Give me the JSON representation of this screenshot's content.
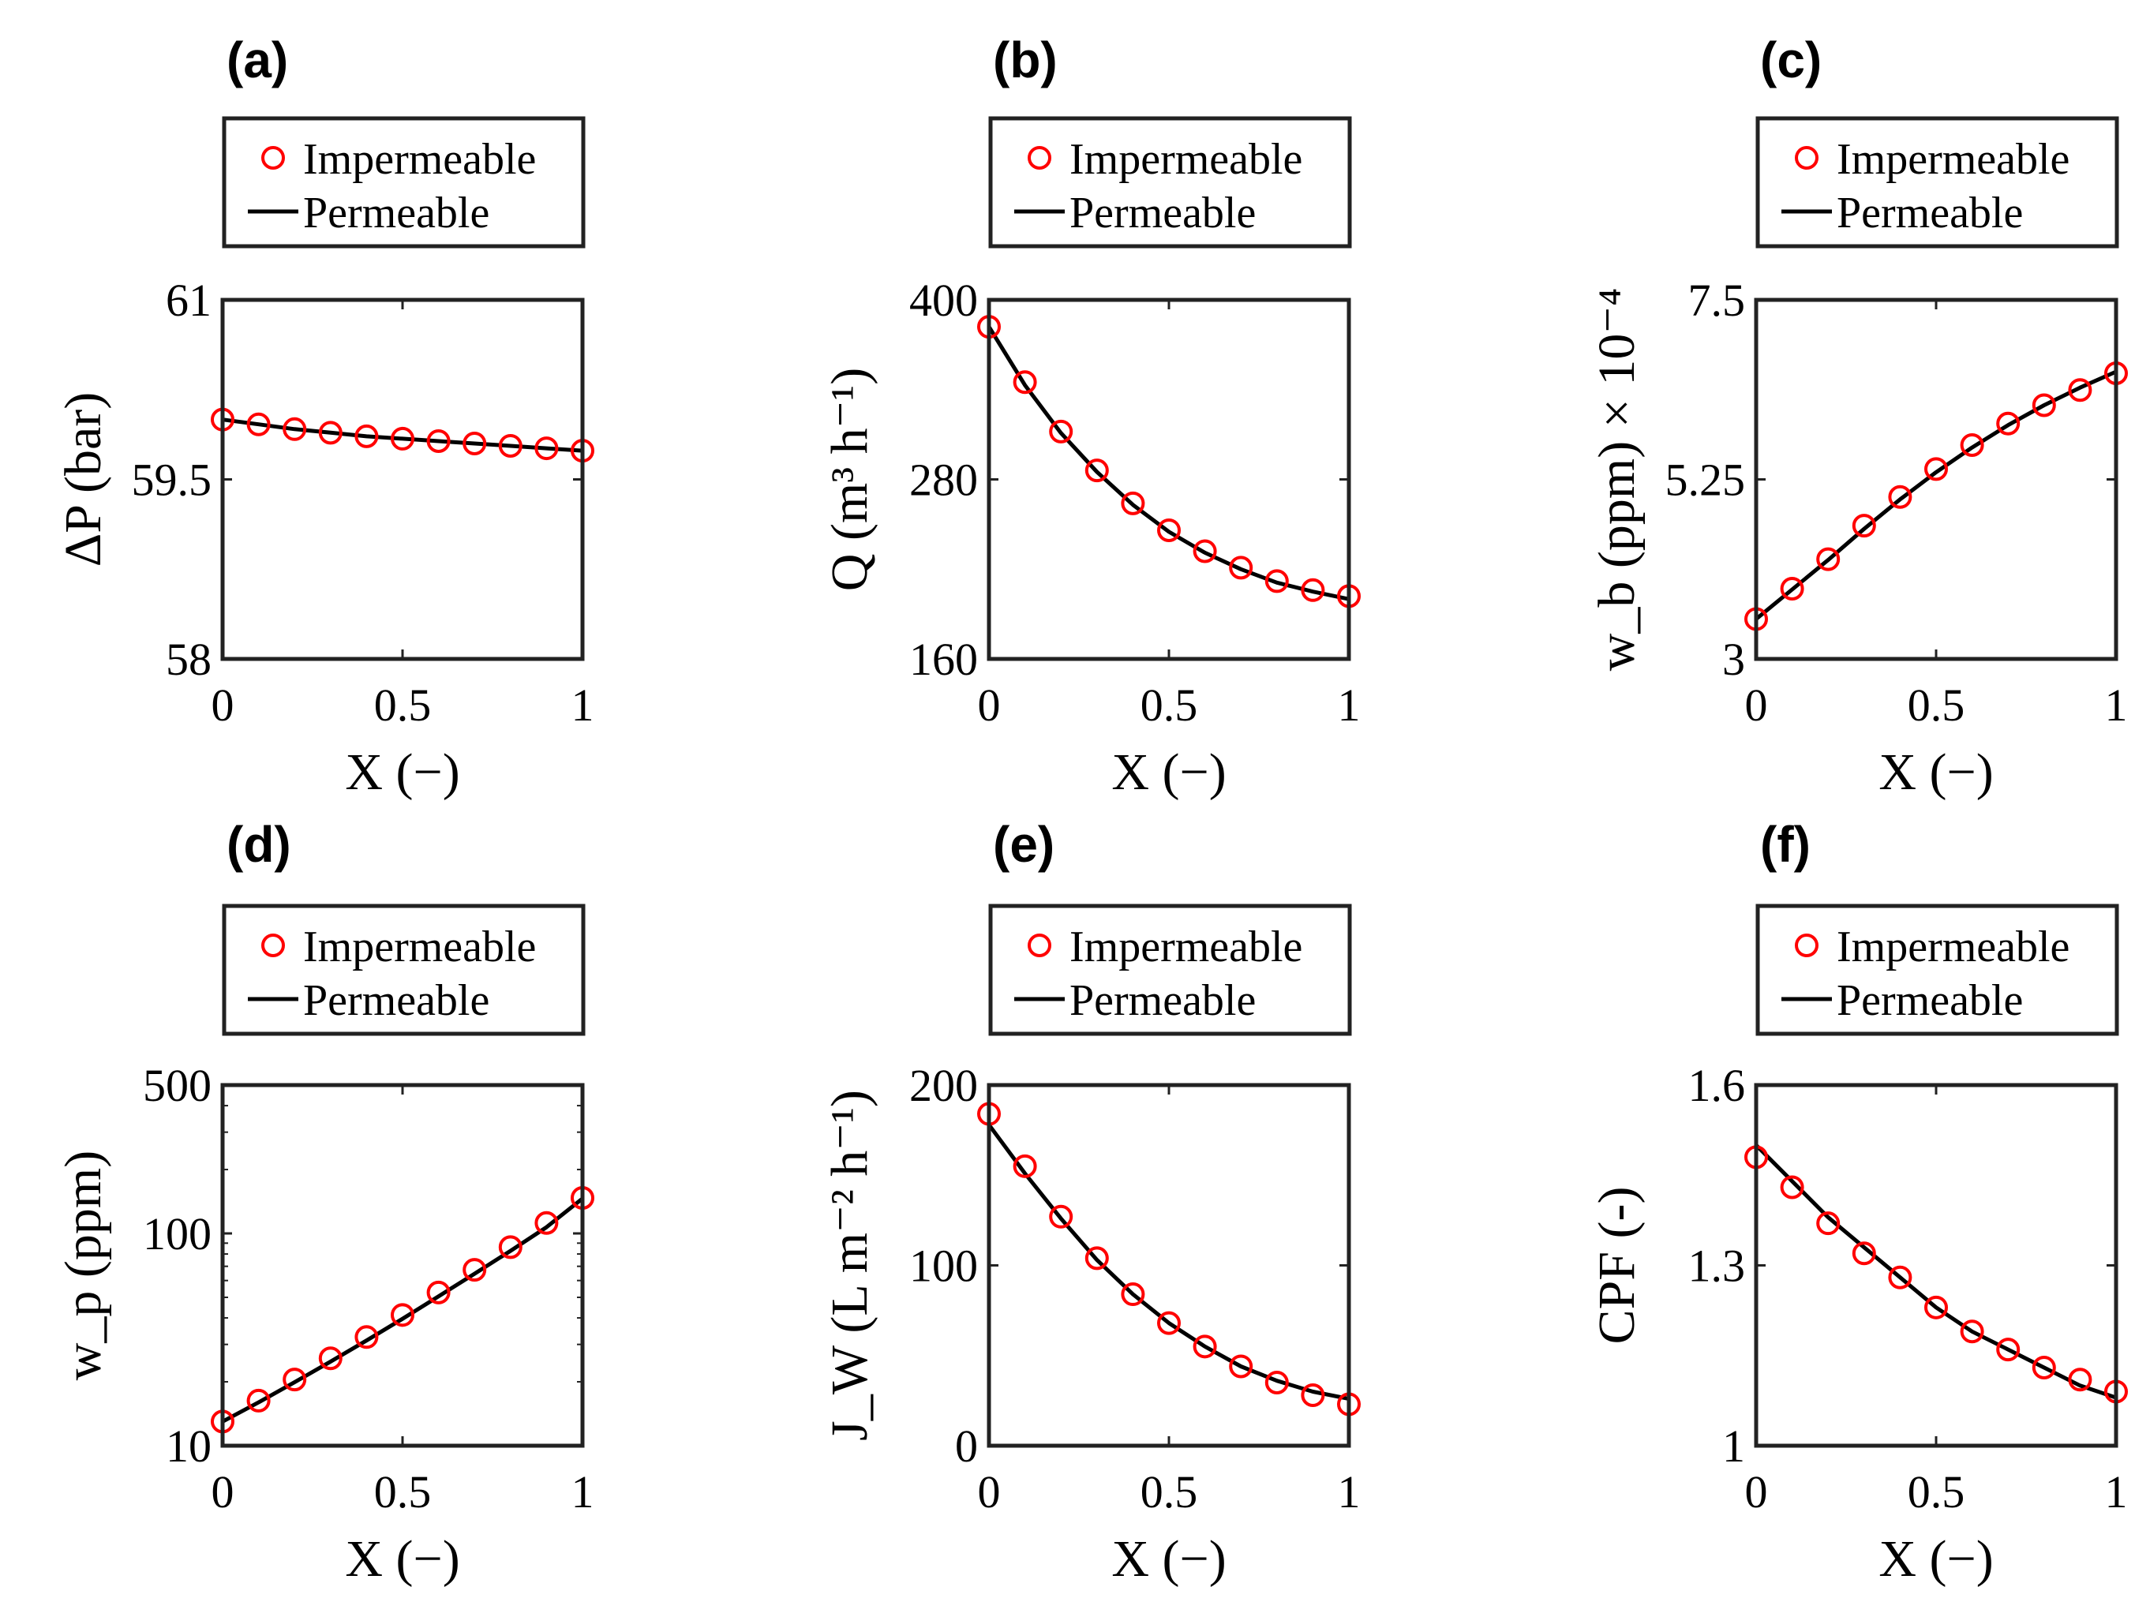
{
  "figure": {
    "legend": {
      "marker_label": "Impermeable",
      "line_label": "Permeable"
    },
    "colors": {
      "marker": "#ff0000",
      "line": "#000000",
      "frame": "#222222"
    }
  },
  "chart_data": [
    {
      "type": "line",
      "panel": "(a)",
      "title": "(a)",
      "xlabel": "X (−)",
      "ylabel": "ΔP (bar)",
      "xlim": [
        0,
        1
      ],
      "ylim": [
        58,
        61
      ],
      "yscale": "linear",
      "xticks": [
        0,
        0.5,
        1
      ],
      "xticklabels": [
        "0",
        "0.5",
        "1"
      ],
      "yticks": [
        58,
        59.5,
        61
      ],
      "yticklabels": [
        "58",
        "59.5",
        "61"
      ],
      "series": [
        {
          "name": "Impermeable",
          "style": "marker",
          "x": [
            0,
            0.1,
            0.2,
            0.3,
            0.4,
            0.5,
            0.6,
            0.7,
            0.8,
            0.9,
            1.0
          ],
          "y": [
            60.0,
            59.96,
            59.92,
            59.89,
            59.86,
            59.84,
            59.82,
            59.8,
            59.78,
            59.76,
            59.74
          ]
        },
        {
          "name": "Permeable",
          "style": "line",
          "x": [
            0,
            0.1,
            0.2,
            0.3,
            0.4,
            0.5,
            0.6,
            0.7,
            0.8,
            0.9,
            1.0
          ],
          "y": [
            60.0,
            59.96,
            59.92,
            59.89,
            59.86,
            59.84,
            59.82,
            59.8,
            59.78,
            59.76,
            59.74
          ]
        }
      ]
    },
    {
      "type": "line",
      "panel": "(b)",
      "title": "(b)",
      "xlabel": "X (−)",
      "ylabel": "Q (m³ h⁻¹)",
      "xlim": [
        0,
        1
      ],
      "ylim": [
        160,
        400
      ],
      "yscale": "linear",
      "xticks": [
        0,
        0.5,
        1
      ],
      "xticklabels": [
        "0",
        "0.5",
        "1"
      ],
      "yticks": [
        160,
        280,
        400
      ],
      "yticklabels": [
        "160",
        "280",
        "400"
      ],
      "series": [
        {
          "name": "Impermeable",
          "style": "marker",
          "x": [
            0,
            0.1,
            0.2,
            0.3,
            0.4,
            0.5,
            0.6,
            0.7,
            0.8,
            0.9,
            1.0
          ],
          "y": [
            382,
            345,
            312,
            286,
            264,
            246,
            232,
            221,
            212,
            206,
            202
          ]
        },
        {
          "name": "Permeable",
          "style": "line",
          "x": [
            0,
            0.1,
            0.2,
            0.3,
            0.4,
            0.5,
            0.6,
            0.7,
            0.8,
            0.9,
            1.0
          ],
          "y": [
            382,
            343,
            311,
            285,
            263,
            245,
            231,
            220,
            211,
            205,
            200
          ]
        }
      ]
    },
    {
      "type": "line",
      "panel": "(c)",
      "title": "(c)",
      "xlabel": "X (−)",
      "ylabel": "w_b (ppm) × 10⁻⁴",
      "xlim": [
        0,
        1
      ],
      "ylim": [
        3,
        7.5
      ],
      "yscale": "linear",
      "xticks": [
        0,
        0.5,
        1
      ],
      "xticklabels": [
        "0",
        "0.5",
        "1"
      ],
      "yticks": [
        3,
        5.25,
        7.5
      ],
      "yticklabels": [
        "3",
        "5.25",
        "7.5"
      ],
      "series": [
        {
          "name": "Impermeable",
          "style": "marker",
          "x": [
            0,
            0.1,
            0.2,
            0.3,
            0.4,
            0.5,
            0.6,
            0.7,
            0.8,
            0.9,
            1.0
          ],
          "y": [
            3.5,
            3.88,
            4.25,
            4.67,
            5.03,
            5.38,
            5.68,
            5.95,
            6.18,
            6.37,
            6.58
          ]
        },
        {
          "name": "Permeable",
          "style": "line",
          "x": [
            0,
            0.1,
            0.2,
            0.3,
            0.4,
            0.5,
            0.6,
            0.7,
            0.8,
            0.9,
            1.0
          ],
          "y": [
            3.5,
            3.87,
            4.24,
            4.63,
            5.0,
            5.34,
            5.65,
            5.93,
            6.18,
            6.4,
            6.6
          ]
        }
      ]
    },
    {
      "type": "line",
      "panel": "(d)",
      "title": "(d)",
      "xlabel": "X (−)",
      "ylabel": "w_p (ppm)",
      "xlim": [
        0,
        1
      ],
      "ylim": [
        10,
        500
      ],
      "yscale": "log",
      "xticks": [
        0,
        0.5,
        1
      ],
      "xticklabels": [
        "0",
        "0.5",
        "1"
      ],
      "yticks": [
        10,
        100,
        500
      ],
      "yticklabels": [
        "10",
        "100",
        "500"
      ],
      "series": [
        {
          "name": "Impermeable",
          "style": "marker",
          "x": [
            0,
            0.1,
            0.2,
            0.3,
            0.4,
            0.5,
            0.6,
            0.7,
            0.8,
            0.9,
            1.0
          ],
          "y": [
            13,
            16.3,
            20.5,
            25.8,
            32.5,
            41.3,
            52.7,
            67.4,
            86.2,
            112,
            147
          ]
        },
        {
          "name": "Permeable",
          "style": "line",
          "x": [
            0,
            0.1,
            0.2,
            0.3,
            0.4,
            0.5,
            0.6,
            0.7,
            0.8,
            0.9,
            1.0
          ],
          "y": [
            13,
            16.0,
            19.9,
            24.9,
            31.3,
            39.6,
            50.5,
            64.6,
            82.8,
            107,
            146
          ]
        }
      ]
    },
    {
      "type": "line",
      "panel": "(e)",
      "title": "(e)",
      "xlabel": "X (−)",
      "ylabel": "J_W (L m⁻² h⁻¹)",
      "xlim": [
        0,
        1
      ],
      "ylim": [
        0,
        200
      ],
      "yscale": "linear",
      "xticks": [
        0,
        0.5,
        1
      ],
      "xticklabels": [
        "0",
        "0.5",
        "1"
      ],
      "yticks": [
        0,
        100,
        200
      ],
      "yticklabels": [
        "0",
        "100",
        "200"
      ],
      "series": [
        {
          "name": "Impermeable",
          "style": "marker",
          "x": [
            0,
            0.1,
            0.2,
            0.3,
            0.4,
            0.5,
            0.6,
            0.7,
            0.8,
            0.9,
            1.0
          ],
          "y": [
            184,
            155,
            127,
            104,
            84,
            68,
            55,
            44,
            35,
            28,
            23
          ]
        },
        {
          "name": "Permeable",
          "style": "line",
          "x": [
            0,
            0.1,
            0.2,
            0.3,
            0.4,
            0.5,
            0.6,
            0.7,
            0.8,
            0.9,
            1.0
          ],
          "y": [
            178,
            151,
            126,
            103,
            84,
            68,
            55,
            44,
            36,
            30,
            26
          ]
        }
      ]
    },
    {
      "type": "line",
      "panel": "(f)",
      "title": "(f)",
      "xlabel": "X (−)",
      "ylabel": "CPF (-)",
      "xlim": [
        0,
        1
      ],
      "ylim": [
        1,
        1.6
      ],
      "yscale": "linear",
      "xticks": [
        0,
        0.5,
        1
      ],
      "xticklabels": [
        "0",
        "0.5",
        "1"
      ],
      "yticks": [
        1,
        1.3,
        1.6
      ],
      "yticklabels": [
        "1",
        "1.3",
        "1.6"
      ],
      "series": [
        {
          "name": "Impermeable",
          "style": "marker",
          "x": [
            0,
            0.1,
            0.2,
            0.3,
            0.4,
            0.5,
            0.6,
            0.7,
            0.8,
            0.9,
            1.0
          ],
          "y": [
            1.48,
            1.43,
            1.37,
            1.32,
            1.28,
            1.23,
            1.19,
            1.16,
            1.13,
            1.11,
            1.09
          ]
        },
        {
          "name": "Permeable",
          "style": "line",
          "x": [
            0,
            0.1,
            0.2,
            0.3,
            0.4,
            0.5,
            0.6,
            0.7,
            0.8,
            0.9,
            1.0
          ],
          "y": [
            1.5,
            1.44,
            1.38,
            1.33,
            1.28,
            1.23,
            1.19,
            1.16,
            1.13,
            1.1,
            1.08
          ]
        }
      ]
    }
  ]
}
